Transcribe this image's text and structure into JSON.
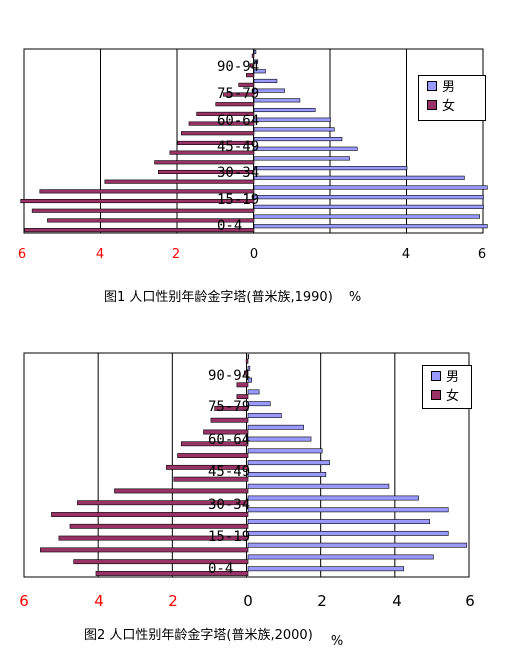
{
  "colors": {
    "male": "#9999ff",
    "female": "#993366",
    "neg_tick": "#ff0000",
    "grid": "#000000"
  },
  "chart_data": [
    {
      "type": "bar",
      "orientation": "horizontal",
      "title": "图1  人口性别年龄金字塔(普米族,1990)",
      "unit": "%",
      "bars_per_side": 19,
      "xlim": [
        -6,
        6
      ],
      "x_ticks": [
        "6",
        "4",
        "2",
        "0",
        "2",
        "4",
        "6"
      ],
      "category_labels": [
        "90-94",
        "75-79",
        "60-64",
        "45-49",
        "30-34",
        "15-19",
        "0-4"
      ],
      "legend": [
        "男",
        "女"
      ],
      "series": [
        {
          "name": "男",
          "values": [
            6.1,
            5.9,
            6.0,
            6.0,
            6.1,
            5.5,
            4.0,
            2.5,
            2.7,
            2.3,
            2.1,
            2.0,
            1.6,
            1.2,
            0.8,
            0.6,
            0.3,
            0.1,
            0.05
          ]
        },
        {
          "name": "女",
          "values": [
            6.0,
            5.4,
            5.8,
            6.1,
            5.6,
            3.9,
            2.5,
            2.6,
            2.2,
            2.0,
            1.9,
            1.7,
            1.5,
            1.0,
            0.8,
            0.4,
            0.2,
            0.1,
            0.05
          ]
        }
      ]
    },
    {
      "type": "bar",
      "orientation": "horizontal",
      "title": "图2  人口性别年龄金字塔(普米族,2000)",
      "unit": "%",
      "bars_per_side": 19,
      "xlim": [
        -6,
        6
      ],
      "x_ticks": [
        "6",
        "4",
        "2",
        "0",
        "2",
        "4",
        "6"
      ],
      "category_labels": [
        "0-4",
        "15-19",
        "30-34",
        "45-49",
        "60-64",
        "75-79",
        "90-94"
      ],
      "legend": [
        "男",
        "女"
      ],
      "series": [
        {
          "name": "男",
          "values": [
            4.2,
            5.0,
            5.9,
            5.4,
            4.9,
            5.4,
            4.6,
            3.8,
            2.1,
            2.2,
            2.0,
            1.7,
            1.5,
            0.9,
            0.6,
            0.3,
            0.1,
            0.05,
            0.02
          ]
        },
        {
          "name": "女",
          "values": [
            4.1,
            4.7,
            5.6,
            5.1,
            4.8,
            5.3,
            4.6,
            3.6,
            2.0,
            2.2,
            1.9,
            1.8,
            1.2,
            1.0,
            0.9,
            0.3,
            0.3,
            0.1,
            0.05
          ]
        }
      ]
    }
  ]
}
